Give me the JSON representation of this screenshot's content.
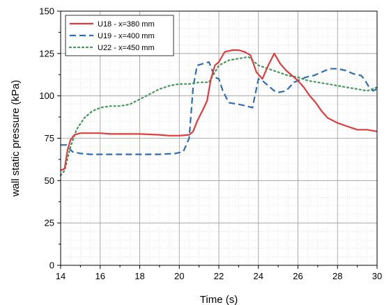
{
  "chart_data": {
    "type": "line",
    "title": "",
    "xlabel": "Time (s)",
    "ylabel": "wall static pressure (kPa)",
    "xlim": [
      14,
      30
    ],
    "ylim": [
      0,
      150
    ],
    "x_ticks": [
      14,
      16,
      18,
      20,
      22,
      24,
      26,
      28,
      30
    ],
    "y_ticks": [
      0,
      25,
      50,
      75,
      100,
      125,
      150
    ],
    "grid": true,
    "legend_position": "top-left",
    "series": [
      {
        "name": "U18 - x=380 mm",
        "color": "#e03c3c",
        "style": "solid",
        "points": [
          [
            14.0,
            56
          ],
          [
            14.2,
            57
          ],
          [
            14.35,
            68
          ],
          [
            14.5,
            74
          ],
          [
            14.7,
            77
          ],
          [
            15.0,
            78
          ],
          [
            15.5,
            78
          ],
          [
            16.0,
            78
          ],
          [
            16.5,
            77.5
          ],
          [
            17.0,
            77.5
          ],
          [
            18.0,
            77.5
          ],
          [
            19.0,
            77
          ],
          [
            19.5,
            76.5
          ],
          [
            20.0,
            76.5
          ],
          [
            20.5,
            77
          ],
          [
            20.7,
            79
          ],
          [
            20.9,
            85
          ],
          [
            21.2,
            92
          ],
          [
            21.4,
            97
          ],
          [
            21.6,
            110
          ],
          [
            21.8,
            118
          ],
          [
            22.0,
            120
          ],
          [
            22.3,
            126
          ],
          [
            22.7,
            127
          ],
          [
            23.0,
            127
          ],
          [
            23.3,
            126
          ],
          [
            23.6,
            124
          ],
          [
            23.9,
            114
          ],
          [
            24.2,
            110
          ],
          [
            24.5,
            118
          ],
          [
            24.8,
            125
          ],
          [
            25.1,
            119
          ],
          [
            25.4,
            115
          ],
          [
            25.7,
            112
          ],
          [
            26.0,
            109
          ],
          [
            26.3,
            105
          ],
          [
            26.6,
            100
          ],
          [
            26.9,
            96
          ],
          [
            27.2,
            91
          ],
          [
            27.5,
            87
          ],
          [
            28.0,
            84
          ],
          [
            28.5,
            82
          ],
          [
            29.0,
            80
          ],
          [
            29.5,
            80
          ],
          [
            30.0,
            79
          ]
        ]
      },
      {
        "name": "U19 - x=400 mm",
        "color": "#2e6db8",
        "style": "dashed",
        "points": [
          [
            14.0,
            71
          ],
          [
            14.3,
            71
          ],
          [
            14.6,
            67
          ],
          [
            15.0,
            66
          ],
          [
            15.5,
            65.5
          ],
          [
            16.0,
            65.5
          ],
          [
            17.0,
            65.5
          ],
          [
            18.0,
            65.5
          ],
          [
            19.0,
            65.5
          ],
          [
            19.8,
            66
          ],
          [
            20.2,
            67
          ],
          [
            20.5,
            75
          ],
          [
            20.7,
            105
          ],
          [
            20.9,
            118
          ],
          [
            21.2,
            119
          ],
          [
            21.5,
            120
          ],
          [
            21.8,
            111
          ],
          [
            22.0,
            110
          ],
          [
            22.2,
            103
          ],
          [
            22.5,
            96
          ],
          [
            23.0,
            95
          ],
          [
            23.4,
            94
          ],
          [
            23.7,
            93
          ],
          [
            24.0,
            110
          ],
          [
            24.2,
            109
          ],
          [
            24.5,
            106
          ],
          [
            24.8,
            103
          ],
          [
            25.0,
            102
          ],
          [
            25.4,
            103
          ],
          [
            25.8,
            108
          ],
          [
            26.0,
            109
          ],
          [
            26.4,
            111
          ],
          [
            26.8,
            112
          ],
          [
            27.2,
            114
          ],
          [
            27.6,
            116
          ],
          [
            28.0,
            116
          ],
          [
            28.4,
            115
          ],
          [
            28.8,
            113
          ],
          [
            29.2,
            112
          ],
          [
            29.4,
            109
          ],
          [
            29.6,
            105
          ],
          [
            29.8,
            103
          ],
          [
            30.0,
            104
          ]
        ]
      },
      {
        "name": "U22 - x=450 mm",
        "color": "#3a9a55",
        "style": "dotted",
        "points": [
          [
            14.0,
            53
          ],
          [
            14.2,
            56
          ],
          [
            14.5,
            70
          ],
          [
            14.8,
            80
          ],
          [
            15.2,
            87
          ],
          [
            15.6,
            91
          ],
          [
            16.0,
            93
          ],
          [
            16.5,
            94
          ],
          [
            17.0,
            94
          ],
          [
            17.5,
            95
          ],
          [
            18.0,
            98
          ],
          [
            18.5,
            101
          ],
          [
            19.0,
            104
          ],
          [
            19.5,
            106
          ],
          [
            20.0,
            107
          ],
          [
            20.5,
            107
          ],
          [
            21.0,
            108
          ],
          [
            21.5,
            108
          ],
          [
            22.0,
            118
          ],
          [
            22.5,
            121
          ],
          [
            23.0,
            122
          ],
          [
            23.5,
            123
          ],
          [
            24.0,
            118
          ],
          [
            24.5,
            116
          ],
          [
            25.0,
            114
          ],
          [
            25.5,
            112
          ],
          [
            26.0,
            111
          ],
          [
            26.5,
            109
          ],
          [
            27.0,
            108
          ],
          [
            27.5,
            107
          ],
          [
            28.0,
            106
          ],
          [
            28.5,
            105
          ],
          [
            29.0,
            104
          ],
          [
            29.5,
            103
          ],
          [
            30.0,
            105
          ]
        ]
      }
    ]
  }
}
